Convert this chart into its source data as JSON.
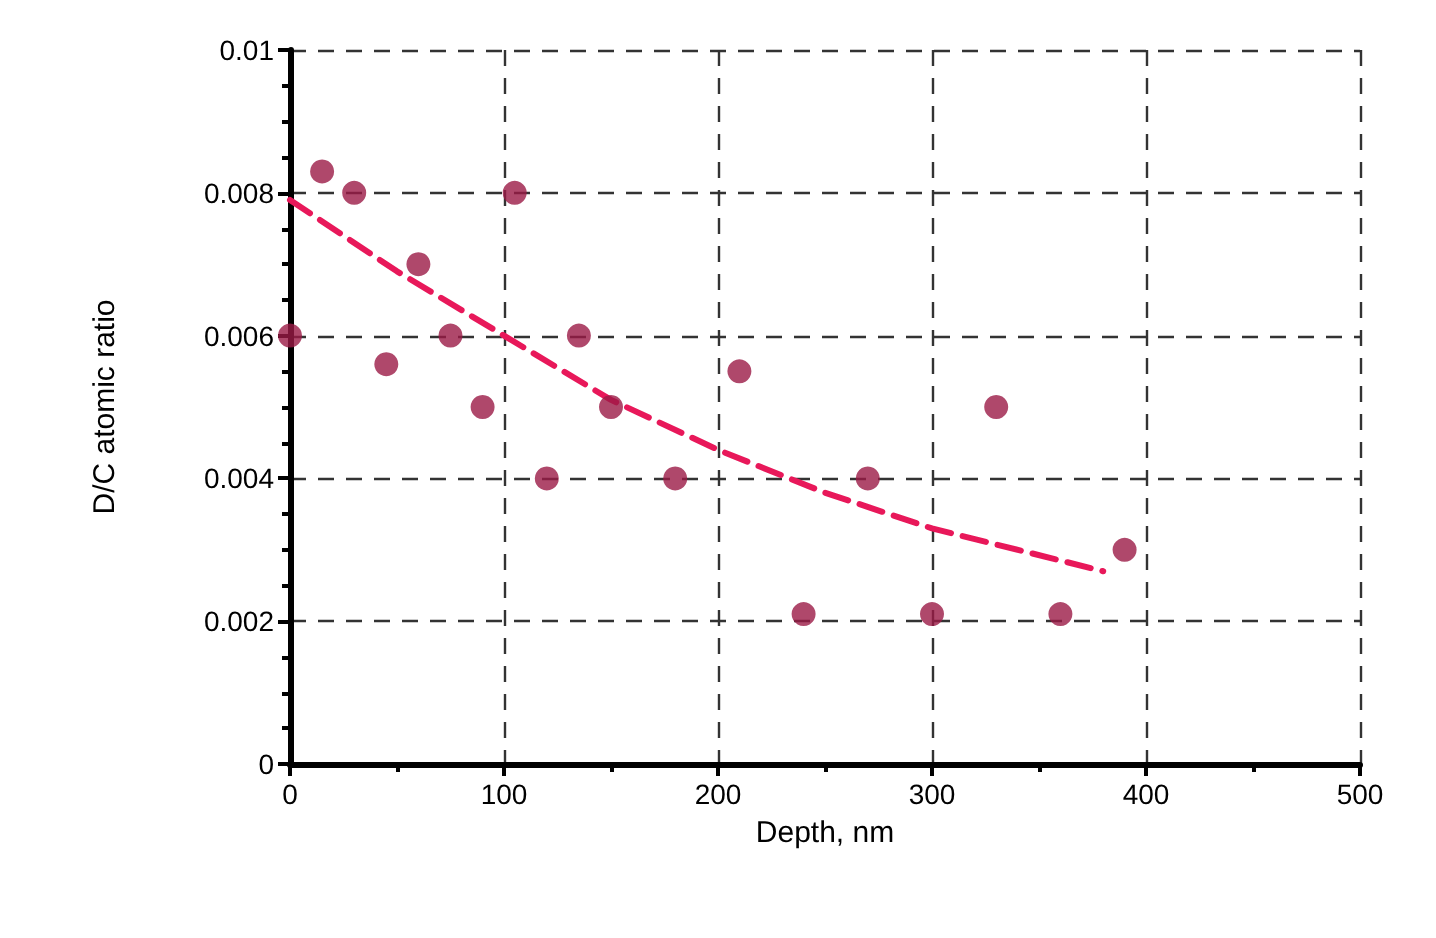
{
  "chart_data": {
    "type": "scatter",
    "xlabel": "Depth, nm",
    "ylabel": "D/C atomic ratio",
    "xlim": [
      0,
      500
    ],
    "xticks": [
      0,
      100,
      200,
      300,
      400,
      500
    ],
    "ylim": [
      0,
      0.01
    ],
    "yticks": [
      0,
      0.002,
      0.004,
      0.006,
      0.008,
      0.01
    ],
    "grid": true,
    "marker": "circle",
    "series": [
      {
        "color": "#9b1a46",
        "x": [
          0,
          15,
          30,
          45,
          60,
          75,
          90,
          105,
          120,
          135,
          150,
          180,
          210,
          240,
          270,
          300,
          330,
          360,
          390
        ],
        "values": [
          0.006,
          0.0083,
          0.008,
          0.0056,
          0.007,
          0.006,
          0.005,
          0.008,
          0.004,
          0.006,
          0.005,
          0.004,
          0.0055,
          0.0021,
          0.004,
          0.0021,
          0.005,
          0.0021,
          0.003
        ]
      },
      {
        "type": "line",
        "color": "#e8185a",
        "line_style": "dashed",
        "marker": "none",
        "x": [
          0,
          50,
          100,
          150,
          200,
          250,
          300,
          380
        ],
        "values": [
          0.0079,
          0.0069,
          0.006,
          0.0051,
          0.0044,
          0.0038,
          0.0033,
          0.0027
        ]
      }
    ]
  }
}
